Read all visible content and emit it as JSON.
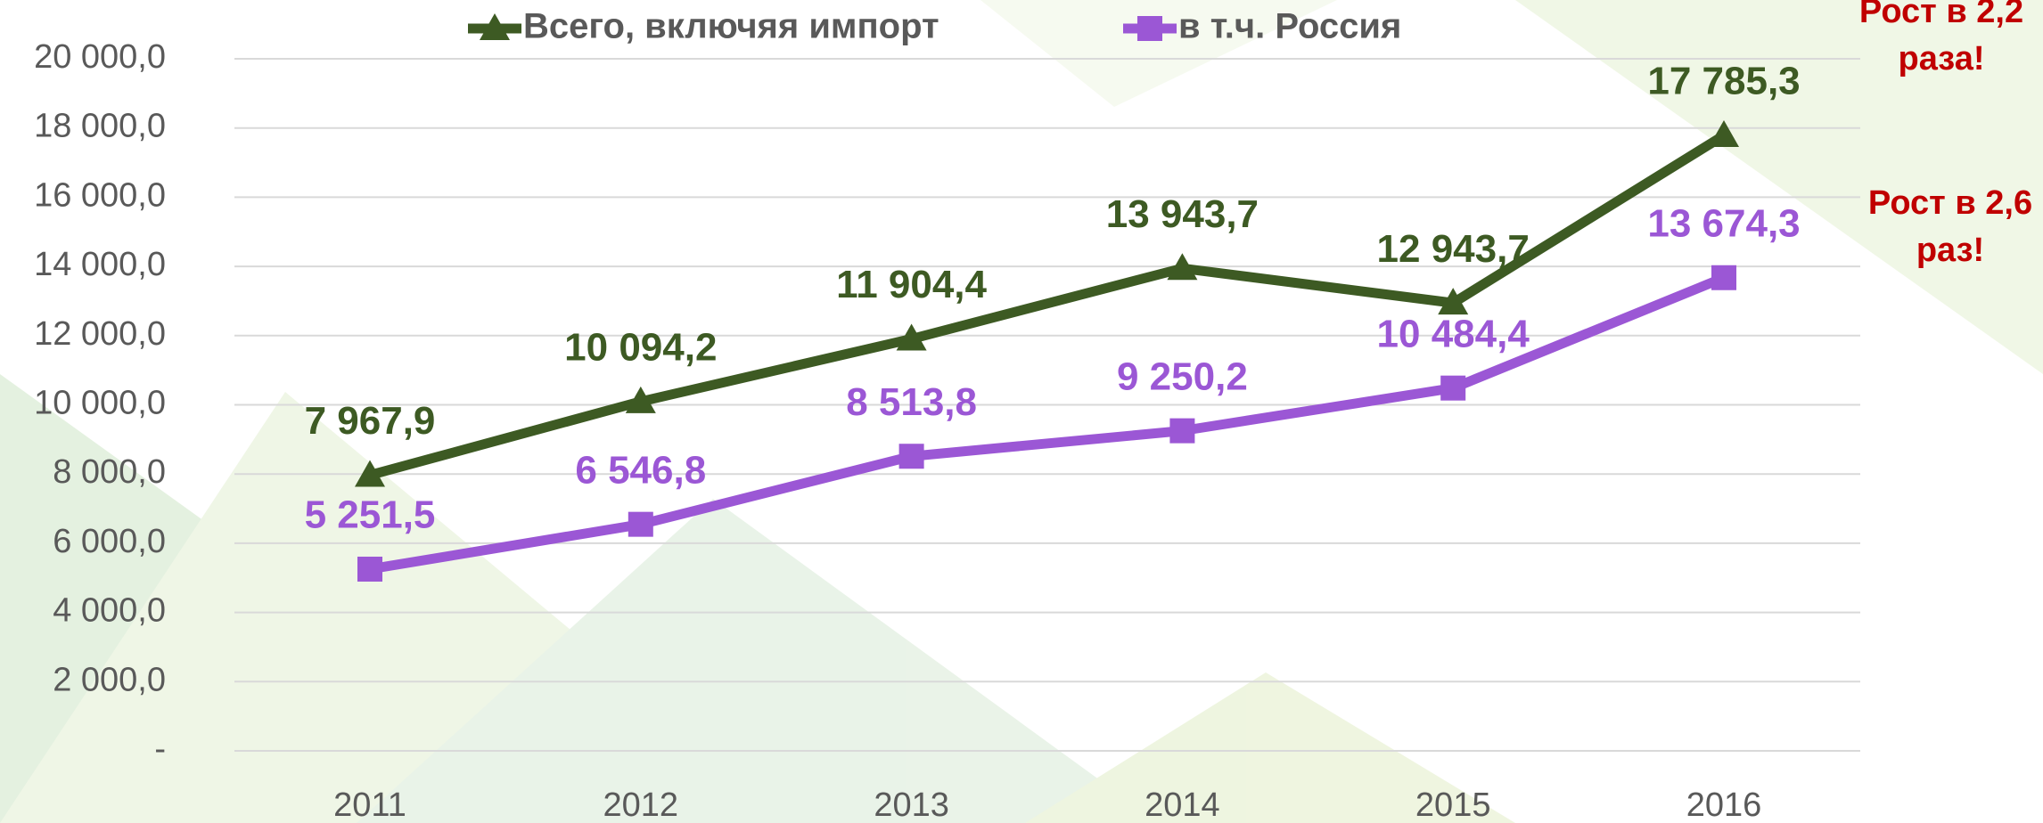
{
  "chart_data": {
    "type": "line",
    "categories": [
      "2011",
      "2012",
      "2013",
      "2014",
      "2015",
      "2016"
    ],
    "series": [
      {
        "name": "Всего, включяя импорт",
        "color": "#3d5a23",
        "marker": "triangle",
        "values": [
          7967.9,
          10094.2,
          11904.4,
          13943.7,
          12943.7,
          17785.3
        ],
        "value_labels": [
          "7 967,9",
          "10 094,2",
          "11 904,4",
          "13 943,7",
          "12 943,7",
          "17 785,3"
        ]
      },
      {
        "name": "в т.ч. Россия",
        "color": "#9b57d5",
        "marker": "square",
        "values": [
          5251.5,
          6546.8,
          8513.8,
          9250.2,
          10484.4,
          13674.3
        ],
        "value_labels": [
          "5 251,5",
          "6 546,8",
          "8 513,8",
          "9 250,2",
          "10 484,4",
          "13 674,3"
        ]
      }
    ],
    "ylim": [
      0,
      20000
    ],
    "yticks": [
      {
        "value": 0,
        "label": "-"
      },
      {
        "value": 2000,
        "label": "2 000,0"
      },
      {
        "value": 4000,
        "label": "4 000,0"
      },
      {
        "value": 6000,
        "label": "6 000,0"
      },
      {
        "value": 8000,
        "label": "8 000,0"
      },
      {
        "value": 10000,
        "label": "10 000,0"
      },
      {
        "value": 12000,
        "label": "12 000,0"
      },
      {
        "value": 14000,
        "label": "14 000,0"
      },
      {
        "value": 16000,
        "label": "16 000,0"
      },
      {
        "value": 18000,
        "label": "18 000,0"
      },
      {
        "value": 20000,
        "label": "20 000,0"
      }
    ],
    "grid": true,
    "legend": "top",
    "annotations": [
      {
        "lines": [
          "Рост в 2,2",
          "раза!"
        ],
        "color": "#c00000"
      },
      {
        "lines": [
          "Рост в 2,6",
          "раз!"
        ],
        "color": "#c00000"
      }
    ]
  }
}
